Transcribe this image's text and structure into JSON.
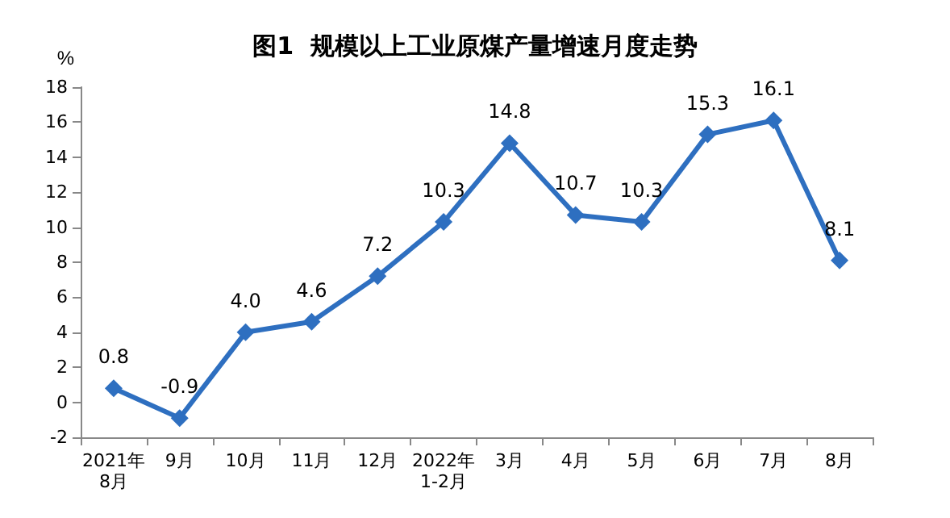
{
  "chart_data": {
    "type": "line",
    "title": "图1  规模以上工业原煤产量增速月度走势",
    "ylabel": "%",
    "categories": [
      "2021年\n8月",
      "9月",
      "10月",
      "11月",
      "12月",
      "2022年\n1-2月",
      "3月",
      "4月",
      "5月",
      "6月",
      "7月",
      "8月"
    ],
    "series": [
      {
        "color": "#2e6fc0",
        "values": [
          0.8,
          -0.9,
          4.0,
          4.6,
          7.2,
          10.3,
          14.8,
          10.7,
          10.3,
          15.3,
          16.1,
          8.1
        ],
        "value_labels": [
          "0.8",
          "-0.9",
          "4.0",
          "4.6",
          "7.2",
          "10.3",
          "14.8",
          "10.7",
          "10.3",
          "15.3",
          "16.1",
          "8.1"
        ]
      }
    ],
    "ylim": [
      -2,
      18
    ],
    "yticks": [
      -2,
      0,
      2,
      4,
      6,
      8,
      10,
      12,
      14,
      16,
      18
    ],
    "grid": false,
    "marker": "diamond",
    "line_style": "solid"
  }
}
